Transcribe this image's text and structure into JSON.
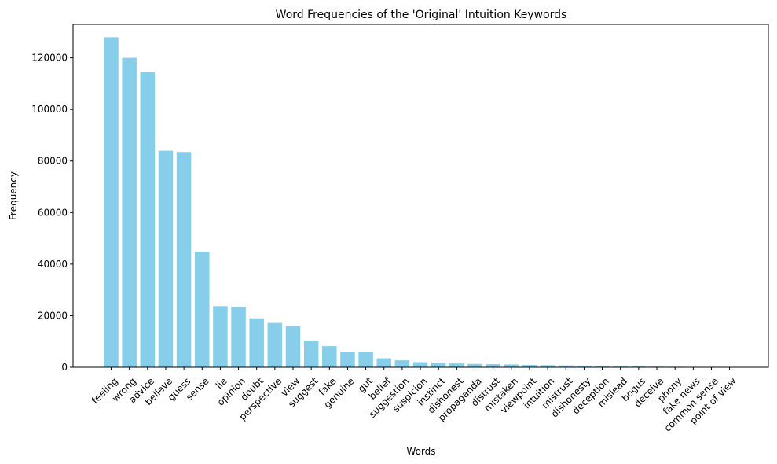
{
  "chart_data": {
    "type": "bar",
    "title": "Word Frequencies of the 'Original' Intuition Keywords",
    "xlabel": "Words",
    "ylabel": "Frequency",
    "ylim": [
      0,
      133000
    ],
    "yticks": [
      0,
      20000,
      40000,
      60000,
      80000,
      100000,
      120000
    ],
    "bar_color": "#87ceeb",
    "grid": false,
    "categories": [
      "feeling",
      "wrong",
      "advice",
      "believe",
      "guess",
      "sense",
      "lie",
      "opinion",
      "doubt",
      "perspective",
      "view",
      "suggest",
      "fake",
      "genuine",
      "gut",
      "belief",
      "suggestion",
      "suspicion",
      "instinct",
      "dishonest",
      "propaganda",
      "distrust",
      "mistaken",
      "viewpoint",
      "intuition",
      "mistrust",
      "dishonesty",
      "deception",
      "mislead",
      "bogus",
      "deceive",
      "phony",
      "fake news",
      "common sense",
      "point of view"
    ],
    "values": [
      128000,
      120000,
      114500,
      84000,
      83500,
      44800,
      23700,
      23400,
      19000,
      17200,
      16000,
      10300,
      8200,
      6100,
      6000,
      3500,
      2700,
      2000,
      1800,
      1500,
      1300,
      1200,
      1100,
      900,
      800,
      700,
      600,
      500,
      400,
      300,
      250,
      200,
      100,
      50,
      30
    ]
  }
}
